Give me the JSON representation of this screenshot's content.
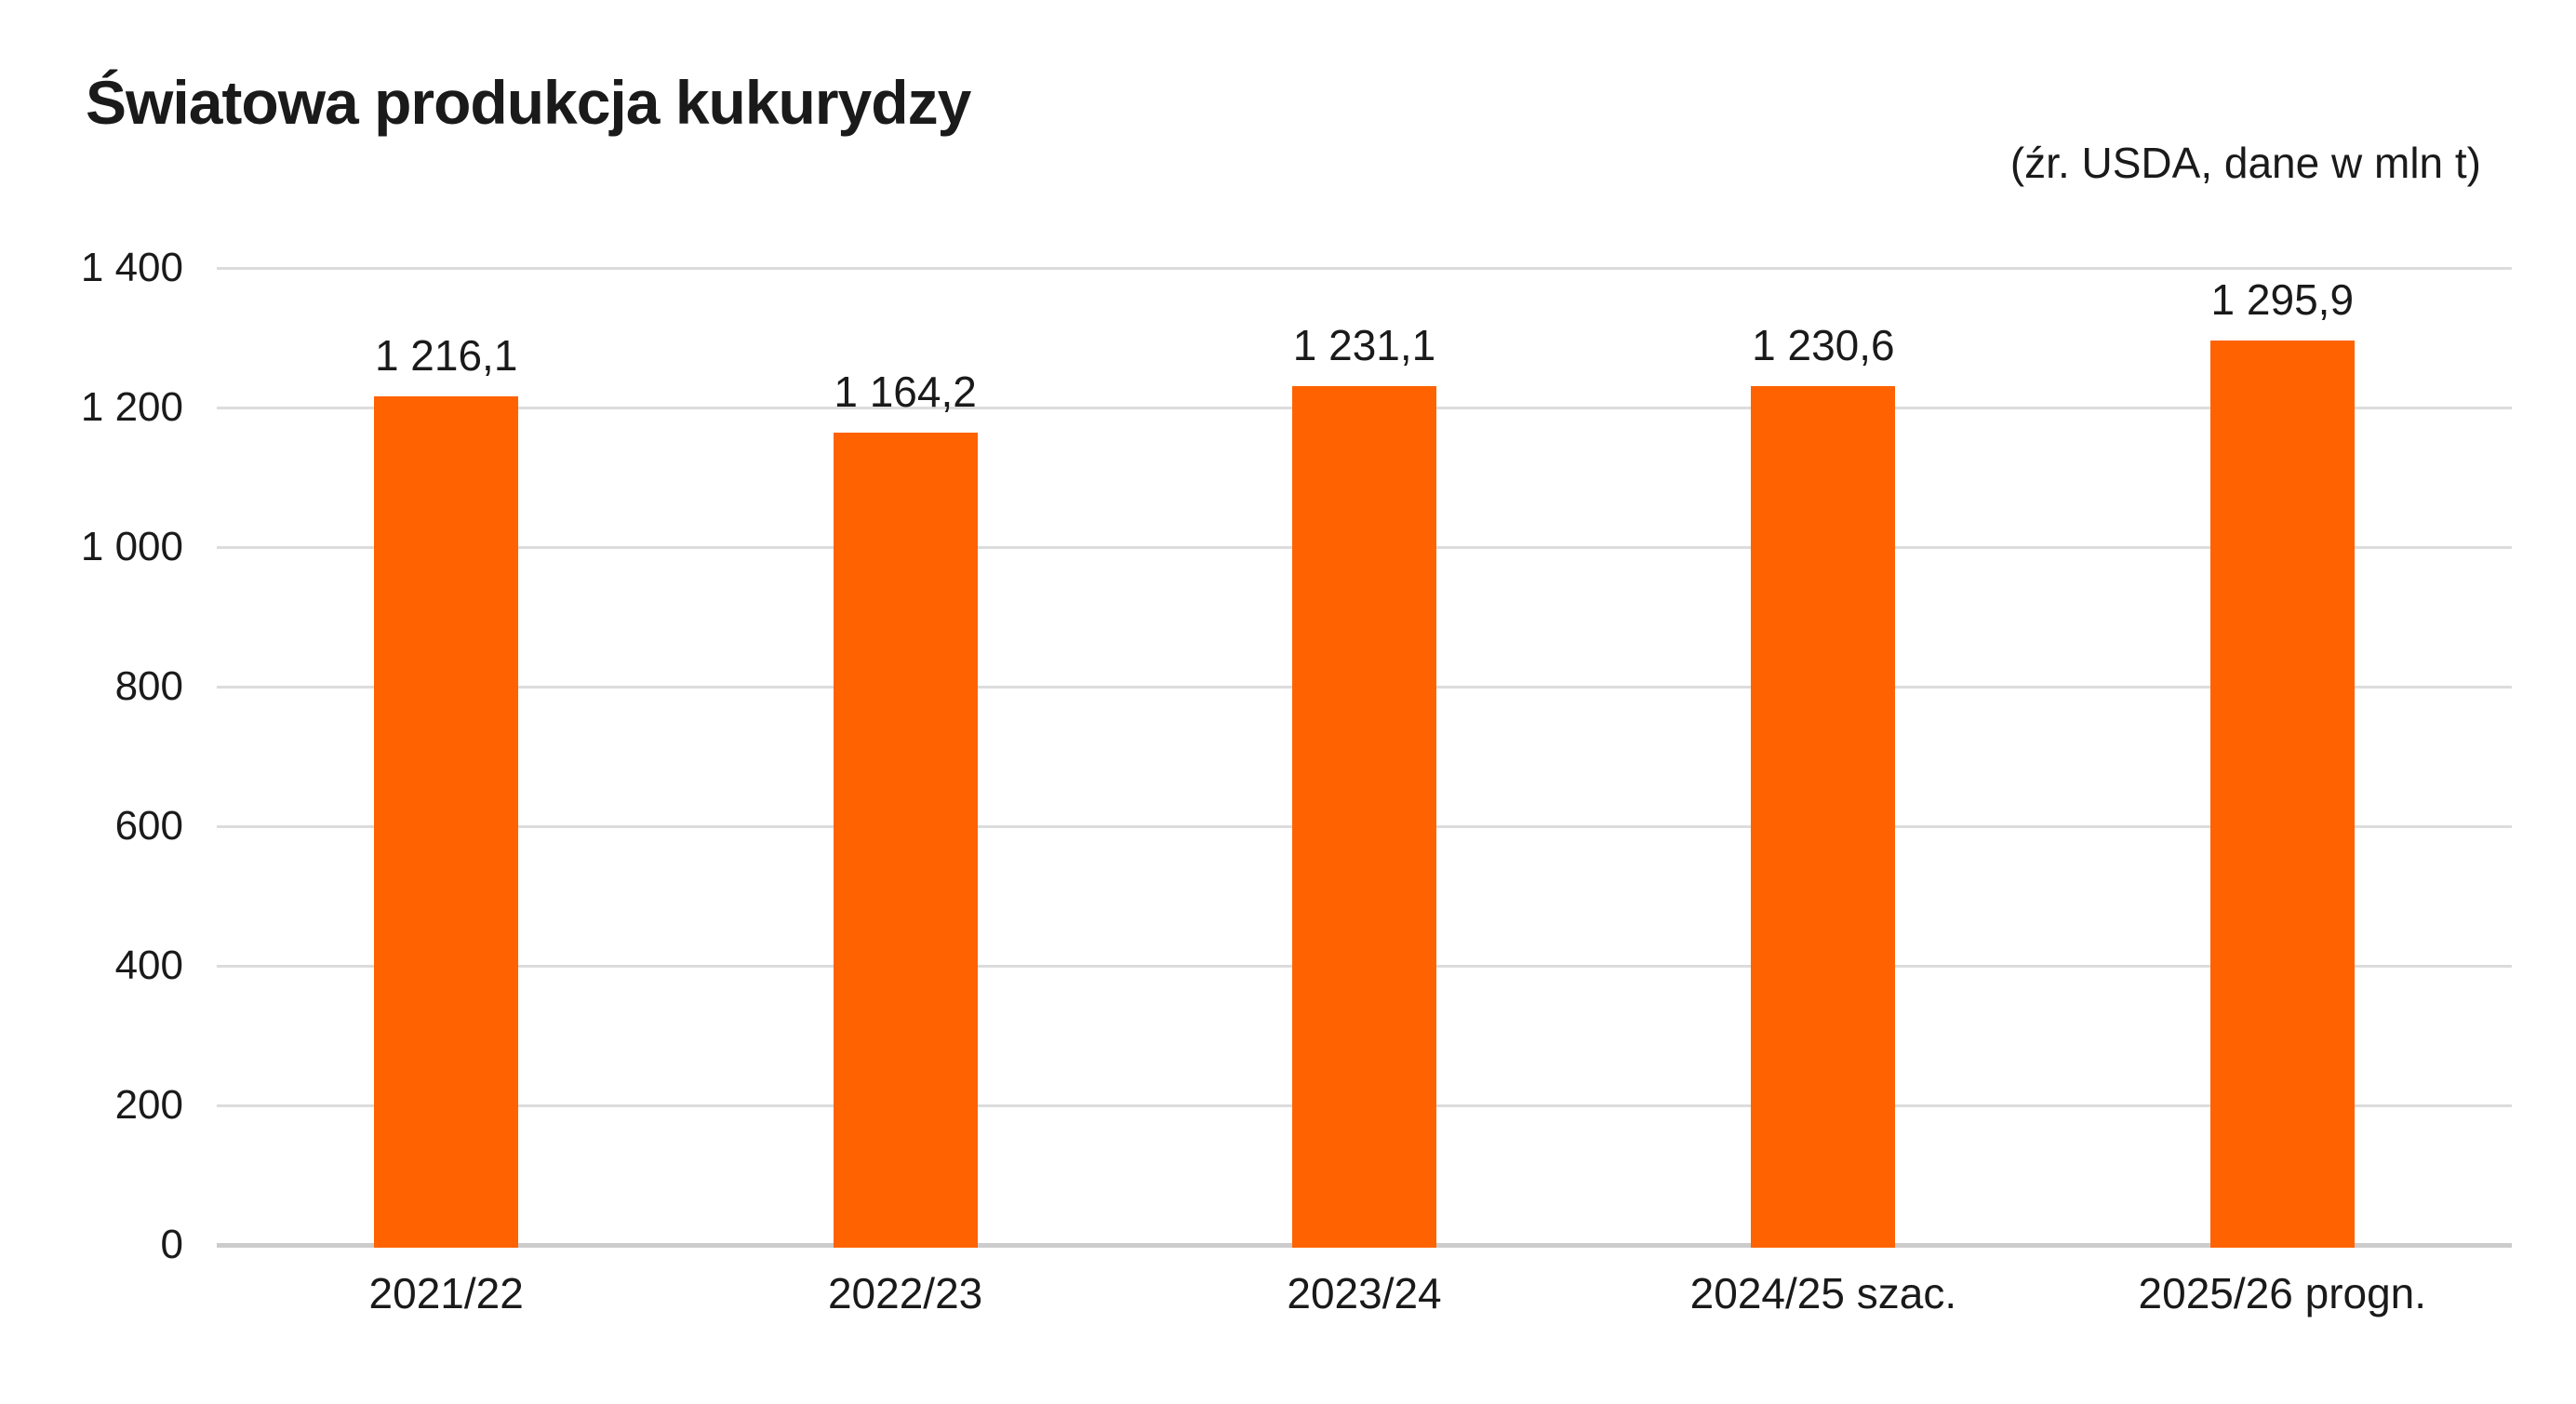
{
  "header": {
    "title": "Światowa produkcja kukurydzy",
    "source_note": "(źr. USDA, dane w mln t)"
  },
  "chart_data": {
    "type": "bar",
    "title": "Światowa produkcja kukurydzy",
    "source_note": "(źr. USDA, dane w mln t)",
    "unit": "mln t",
    "categories": [
      "2021/22",
      "2022/23",
      "2023/24",
      "2024/25 szac.",
      "2025/26 progn."
    ],
    "values": [
      1216.1,
      1164.2,
      1231.1,
      1230.6,
      1295.9
    ],
    "value_labels": [
      "1 216,1",
      "1 164,2",
      "1 231,1",
      "1 230,6",
      "1 295,9"
    ],
    "ylim": [
      0,
      1400
    ],
    "yticks": [
      0,
      200,
      400,
      600,
      800,
      1000,
      1200,
      1400
    ],
    "ytick_labels": [
      "0",
      "200",
      "400",
      "600",
      "800",
      "1 000",
      "1 200",
      "1 400"
    ],
    "grid": true,
    "legend": false,
    "colors": {
      "bar": "#FF6200",
      "gridline": "#dcdcdc",
      "zero_axis": "#cccccc",
      "text": "#1a1a1a",
      "background": "#ffffff"
    }
  }
}
